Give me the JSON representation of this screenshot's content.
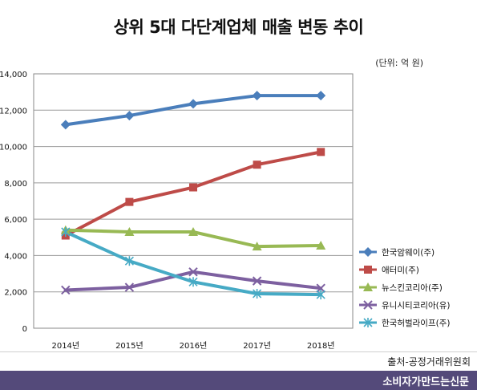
{
  "title": "상위 5대 다단계업체 매출 변동 추이",
  "unit_note": "(단위: 억 원)",
  "source": "출처-공정거래위원회",
  "footer": "소비자가만드는신문",
  "chart_data": {
    "type": "line",
    "categories": [
      "2014년",
      "2015년",
      "2016년",
      "2017년",
      "2018년"
    ],
    "ylim": [
      0,
      14000
    ],
    "y_ticks": [
      0,
      2000,
      4000,
      6000,
      8000,
      10000,
      12000,
      14000
    ],
    "y_tick_labels": [
      "0",
      "2,000",
      "4,000",
      "6,000",
      "8,000",
      "10,000",
      "12,000",
      "14,000"
    ],
    "grid": true,
    "legend_position": "right",
    "series": [
      {
        "name": "한국암웨이(주)",
        "values": [
          11200,
          11700,
          12350,
          12800,
          12800
        ],
        "color": "#4a7ebb",
        "marker": "diamond"
      },
      {
        "name": "애터미(주)",
        "values": [
          5100,
          6950,
          7750,
          9000,
          9700
        ],
        "color": "#be4b48",
        "marker": "square"
      },
      {
        "name": "뉴스킨코리아(주)",
        "values": [
          5400,
          5300,
          5300,
          4500,
          4550
        ],
        "color": "#98b954",
        "marker": "triangle"
      },
      {
        "name": "유니시티코리아(유)",
        "values": [
          2100,
          2250,
          3100,
          2600,
          2200
        ],
        "color": "#7d60a0",
        "marker": "x"
      },
      {
        "name": "한국허벌라이프(주)",
        "values": [
          5300,
          3700,
          2550,
          1900,
          1850
        ],
        "color": "#46aac5",
        "marker": "star"
      }
    ]
  }
}
